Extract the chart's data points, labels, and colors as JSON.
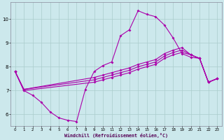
{
  "xlabel": "Windchill (Refroidissement éolien,°C)",
  "background_color": "#cce8ec",
  "grid_color": "#aacccc",
  "line_color": "#aa00aa",
  "xlim": [
    -0.5,
    23.5
  ],
  "ylim": [
    5.5,
    10.7
  ],
  "yticks": [
    6,
    7,
    8,
    9,
    10
  ],
  "xticks": [
    0,
    1,
    2,
    3,
    4,
    5,
    6,
    7,
    8,
    9,
    10,
    11,
    12,
    13,
    14,
    15,
    16,
    17,
    18,
    19,
    20,
    21,
    22,
    23
  ],
  "line1_x": [
    0,
    1,
    2,
    3,
    4,
    5,
    6,
    7,
    8,
    9,
    10,
    11,
    12,
    13,
    14,
    15,
    16,
    17,
    18,
    19,
    20,
    21,
    22,
    23
  ],
  "line1_y": [
    7.8,
    7.0,
    6.8,
    6.5,
    6.1,
    5.85,
    5.75,
    5.7,
    7.05,
    7.8,
    8.05,
    8.2,
    9.3,
    9.55,
    10.35,
    10.2,
    10.1,
    9.75,
    9.2,
    8.55,
    8.4,
    8.35,
    7.35,
    7.5
  ],
  "line2_x": [
    0,
    1,
    9,
    10,
    11,
    12,
    13,
    14,
    15,
    16,
    17,
    18,
    19,
    20,
    21,
    22,
    23
  ],
  "line2_y": [
    7.8,
    7.05,
    7.55,
    7.65,
    7.75,
    7.85,
    7.95,
    8.1,
    8.2,
    8.3,
    8.55,
    8.7,
    8.8,
    8.5,
    8.35,
    7.35,
    7.5
  ],
  "line3_x": [
    0,
    1,
    9,
    10,
    11,
    12,
    13,
    14,
    15,
    16,
    17,
    18,
    19,
    20,
    21,
    22,
    23
  ],
  "line3_y": [
    7.8,
    7.05,
    7.45,
    7.55,
    7.65,
    7.75,
    7.85,
    8.0,
    8.1,
    8.2,
    8.45,
    8.6,
    8.7,
    8.5,
    8.35,
    7.35,
    7.5
  ],
  "line4_x": [
    0,
    1,
    9,
    10,
    11,
    12,
    13,
    14,
    15,
    16,
    17,
    18,
    19,
    20,
    21,
    22,
    23
  ],
  "line4_y": [
    7.8,
    7.0,
    7.35,
    7.45,
    7.55,
    7.65,
    7.75,
    7.9,
    8.0,
    8.1,
    8.35,
    8.5,
    8.6,
    8.5,
    8.35,
    7.35,
    7.5
  ]
}
